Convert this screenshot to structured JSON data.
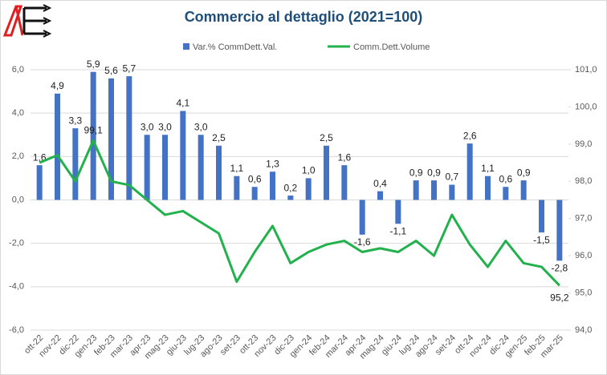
{
  "chart_data": {
    "type": "bar",
    "title": "Commercio al dettaglio (2021=100)",
    "categories": [
      "ott-22",
      "nov-22",
      "dic-22",
      "gen-23",
      "feb-23",
      "mar-23",
      "apr-23",
      "mag-23",
      "giu-23",
      "lug-23",
      "ago-23",
      "set-23",
      "ott-23",
      "nov-23",
      "dic-23",
      "gen-24",
      "feb-24",
      "mar-24",
      "apr-24",
      "mag-24",
      "giu-24",
      "lug-24",
      "ago-24",
      "set-24",
      "ott-24",
      "nov-24",
      "dic-24",
      "gen-25",
      "feb-25",
      "mar-25"
    ],
    "series": [
      {
        "name": "Var.% CommDett.Val.",
        "type": "bar",
        "color": "#4472c4",
        "values": [
          1.6,
          4.9,
          3.3,
          5.9,
          5.6,
          5.7,
          3.0,
          3.0,
          4.1,
          3.0,
          2.5,
          1.1,
          0.6,
          1.3,
          0.2,
          1.0,
          2.5,
          1.6,
          -1.6,
          0.4,
          -1.1,
          0.9,
          0.9,
          0.7,
          2.6,
          1.1,
          0.6,
          0.9,
          -1.5,
          -2.8
        ],
        "value_labels": [
          "1,6",
          "4,9",
          "3,3",
          "5,9",
          "5,6",
          "5,7",
          "3,0",
          "3,0",
          "4,1",
          "3,0",
          "2,5",
          "1,1",
          "0,6",
          "1,3",
          "0,2",
          "1,0",
          "2,5",
          "1,6",
          "-1,6",
          "0,4",
          "-1,1",
          "0,9",
          "0,9",
          "0,7",
          "2,6",
          "1,1",
          "0,6",
          "0,9",
          "-1,5",
          "-2,8"
        ]
      },
      {
        "name": "Comm.Dett.Volume",
        "type": "line",
        "axis": "y2",
        "color": "#22b14c",
        "values": [
          98.5,
          98.7,
          98.0,
          99.1,
          98.0,
          97.9,
          97.5,
          97.1,
          97.2,
          96.9,
          96.6,
          95.3,
          96.1,
          96.8,
          95.8,
          96.1,
          96.3,
          96.4,
          96.1,
          96.2,
          96.1,
          96.4,
          96.0,
          97.1,
          96.3,
          95.7,
          96.4,
          95.8,
          95.7,
          95.2
        ],
        "value_labels": [
          null,
          null,
          null,
          "99,1",
          null,
          null,
          null,
          null,
          null,
          null,
          null,
          null,
          null,
          null,
          null,
          null,
          null,
          null,
          null,
          null,
          null,
          null,
          null,
          null,
          null,
          null,
          null,
          null,
          null,
          "95,2"
        ]
      }
    ],
    "ylim": [
      -6,
      6
    ],
    "yticks": [
      {
        "value": -6,
        "label": "-6,0"
      },
      {
        "value": -4,
        "label": "-4,0"
      },
      {
        "value": -2,
        "label": "-2,0"
      },
      {
        "value": 0,
        "label": "0,0"
      },
      {
        "value": 2,
        "label": "2,0"
      },
      {
        "value": 4,
        "label": "4,0"
      },
      {
        "value": 6,
        "label": "6,0"
      }
    ],
    "y2lim": [
      94,
      101
    ],
    "y2ticks": [
      {
        "value": 94,
        "label": "94,0"
      },
      {
        "value": 95,
        "label": "95,0"
      },
      {
        "value": 96,
        "label": "96,0"
      },
      {
        "value": 97,
        "label": "97,0"
      },
      {
        "value": 98,
        "label": "98,0"
      },
      {
        "value": 99,
        "label": "99,0"
      },
      {
        "value": 100,
        "label": "100,0"
      },
      {
        "value": 101,
        "label": "101,0"
      }
    ],
    "grid": true,
    "legend": "top"
  }
}
